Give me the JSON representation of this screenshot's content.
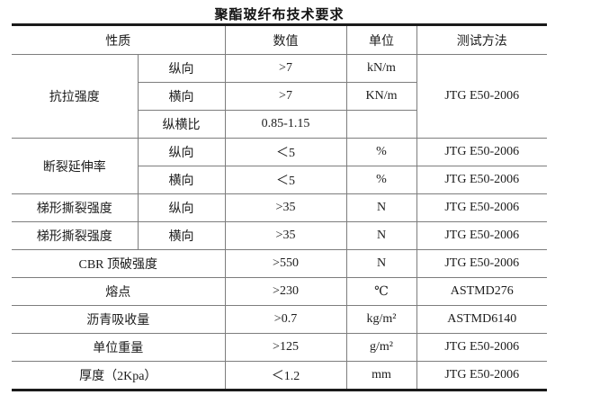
{
  "title": "聚酯玻纤布技术要求",
  "header": {
    "property": "性质",
    "value": "数值",
    "unit": "单位",
    "method": "测试方法"
  },
  "rows": [
    {
      "group": "抗拉强度",
      "direction": "纵向",
      "value": ">7",
      "unit": "kN/m",
      "method": "JTG E50-2006"
    },
    {
      "direction": "横向",
      "value": ">7",
      "unit": "KN/m"
    },
    {
      "direction": "纵横比",
      "value": "0.85-1.15",
      "unit": ""
    },
    {
      "group": "断裂延伸率",
      "direction": "纵向",
      "value": "＜5",
      "unit": "%",
      "method": "JTG E50-2006"
    },
    {
      "direction": "横向",
      "value": "＜5",
      "unit": "%",
      "method": "JTG E50-2006"
    },
    {
      "group": "梯形撕裂强度",
      "direction": "纵向",
      "value": ">35",
      "unit": "N",
      "method": "JTG E50-2006"
    },
    {
      "group": "梯形撕裂强度",
      "direction": "横向",
      "value": ">35",
      "unit": "N",
      "method": "JTG E50-2006"
    },
    {
      "name": "CBR 顶破强度",
      "value": ">550",
      "unit": "N",
      "method": "JTG E50-2006"
    },
    {
      "name": "熔点",
      "value": ">230",
      "unit": "℃",
      "method": "ASTMD276"
    },
    {
      "name": "沥青吸收量",
      "value": ">0.7",
      "unit": "kg/m²",
      "method": "ASTMD6140"
    },
    {
      "name": "单位重量",
      "value": ">125",
      "unit": "g/m²",
      "method": "JTG E50-2006"
    },
    {
      "name": "厚度（2Kpa）",
      "value": "＜1.2",
      "unit": "mm",
      "method": "JTG E50-2006"
    }
  ]
}
